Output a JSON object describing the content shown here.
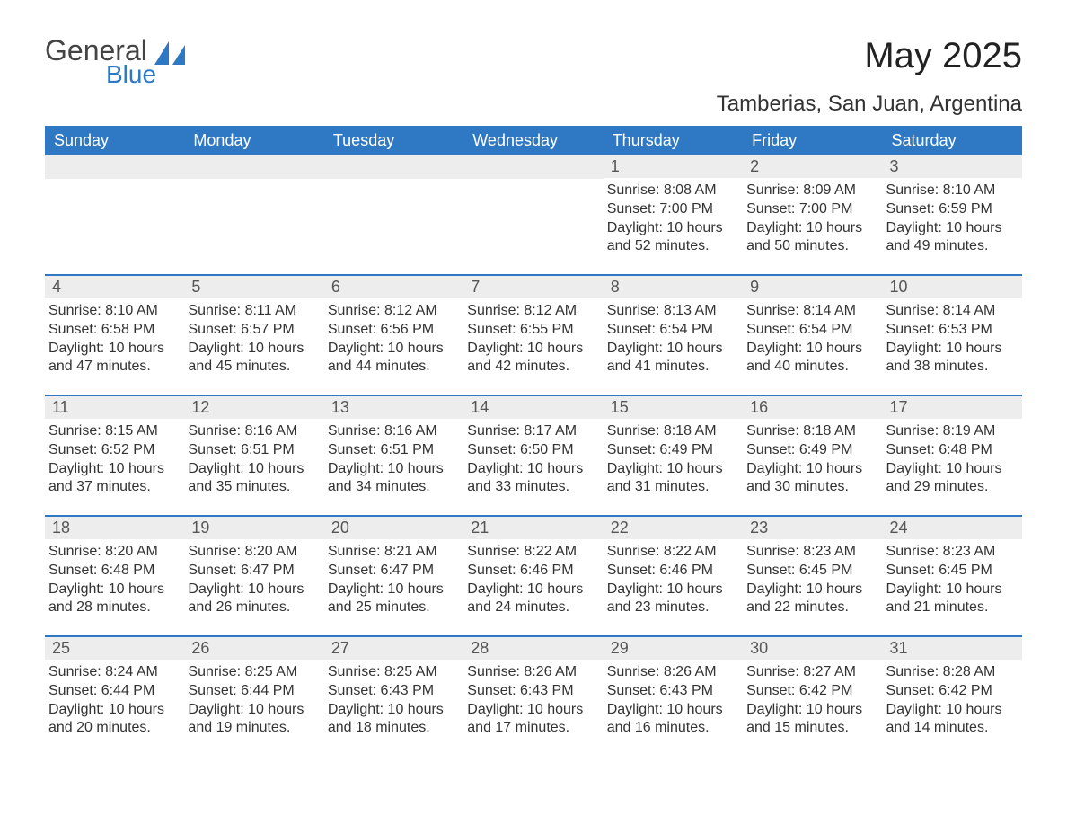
{
  "logo": {
    "word1": "General",
    "word2": "Blue",
    "accent_color": "#2f79c4"
  },
  "title": "May 2025",
  "location": "Tamberias, San Juan, Argentina",
  "colors": {
    "header_bg": "#2f79c4",
    "header_text": "#ffffff",
    "daynum_bg": "#ededed",
    "text": "#333333",
    "background": "#ffffff"
  },
  "typography": {
    "title_fontsize": 40,
    "location_fontsize": 24,
    "dow_fontsize": 18,
    "body_fontsize": 16
  },
  "calendar": {
    "type": "table",
    "days_of_week": [
      "Sunday",
      "Monday",
      "Tuesday",
      "Wednesday",
      "Thursday",
      "Friday",
      "Saturday"
    ],
    "weeks": [
      [
        null,
        null,
        null,
        null,
        {
          "n": "1",
          "sunrise": "8:08 AM",
          "sunset": "7:00 PM",
          "daylight": "10 hours and 52 minutes."
        },
        {
          "n": "2",
          "sunrise": "8:09 AM",
          "sunset": "7:00 PM",
          "daylight": "10 hours and 50 minutes."
        },
        {
          "n": "3",
          "sunrise": "8:10 AM",
          "sunset": "6:59 PM",
          "daylight": "10 hours and 49 minutes."
        }
      ],
      [
        {
          "n": "4",
          "sunrise": "8:10 AM",
          "sunset": "6:58 PM",
          "daylight": "10 hours and 47 minutes."
        },
        {
          "n": "5",
          "sunrise": "8:11 AM",
          "sunset": "6:57 PM",
          "daylight": "10 hours and 45 minutes."
        },
        {
          "n": "6",
          "sunrise": "8:12 AM",
          "sunset": "6:56 PM",
          "daylight": "10 hours and 44 minutes."
        },
        {
          "n": "7",
          "sunrise": "8:12 AM",
          "sunset": "6:55 PM",
          "daylight": "10 hours and 42 minutes."
        },
        {
          "n": "8",
          "sunrise": "8:13 AM",
          "sunset": "6:54 PM",
          "daylight": "10 hours and 41 minutes."
        },
        {
          "n": "9",
          "sunrise": "8:14 AM",
          "sunset": "6:54 PM",
          "daylight": "10 hours and 40 minutes."
        },
        {
          "n": "10",
          "sunrise": "8:14 AM",
          "sunset": "6:53 PM",
          "daylight": "10 hours and 38 minutes."
        }
      ],
      [
        {
          "n": "11",
          "sunrise": "8:15 AM",
          "sunset": "6:52 PM",
          "daylight": "10 hours and 37 minutes."
        },
        {
          "n": "12",
          "sunrise": "8:16 AM",
          "sunset": "6:51 PM",
          "daylight": "10 hours and 35 minutes."
        },
        {
          "n": "13",
          "sunrise": "8:16 AM",
          "sunset": "6:51 PM",
          "daylight": "10 hours and 34 minutes."
        },
        {
          "n": "14",
          "sunrise": "8:17 AM",
          "sunset": "6:50 PM",
          "daylight": "10 hours and 33 minutes."
        },
        {
          "n": "15",
          "sunrise": "8:18 AM",
          "sunset": "6:49 PM",
          "daylight": "10 hours and 31 minutes."
        },
        {
          "n": "16",
          "sunrise": "8:18 AM",
          "sunset": "6:49 PM",
          "daylight": "10 hours and 30 minutes."
        },
        {
          "n": "17",
          "sunrise": "8:19 AM",
          "sunset": "6:48 PM",
          "daylight": "10 hours and 29 minutes."
        }
      ],
      [
        {
          "n": "18",
          "sunrise": "8:20 AM",
          "sunset": "6:48 PM",
          "daylight": "10 hours and 28 minutes."
        },
        {
          "n": "19",
          "sunrise": "8:20 AM",
          "sunset": "6:47 PM",
          "daylight": "10 hours and 26 minutes."
        },
        {
          "n": "20",
          "sunrise": "8:21 AM",
          "sunset": "6:47 PM",
          "daylight": "10 hours and 25 minutes."
        },
        {
          "n": "21",
          "sunrise": "8:22 AM",
          "sunset": "6:46 PM",
          "daylight": "10 hours and 24 minutes."
        },
        {
          "n": "22",
          "sunrise": "8:22 AM",
          "sunset": "6:46 PM",
          "daylight": "10 hours and 23 minutes."
        },
        {
          "n": "23",
          "sunrise": "8:23 AM",
          "sunset": "6:45 PM",
          "daylight": "10 hours and 22 minutes."
        },
        {
          "n": "24",
          "sunrise": "8:23 AM",
          "sunset": "6:45 PM",
          "daylight": "10 hours and 21 minutes."
        }
      ],
      [
        {
          "n": "25",
          "sunrise": "8:24 AM",
          "sunset": "6:44 PM",
          "daylight": "10 hours and 20 minutes."
        },
        {
          "n": "26",
          "sunrise": "8:25 AM",
          "sunset": "6:44 PM",
          "daylight": "10 hours and 19 minutes."
        },
        {
          "n": "27",
          "sunrise": "8:25 AM",
          "sunset": "6:43 PM",
          "daylight": "10 hours and 18 minutes."
        },
        {
          "n": "28",
          "sunrise": "8:26 AM",
          "sunset": "6:43 PM",
          "daylight": "10 hours and 17 minutes."
        },
        {
          "n": "29",
          "sunrise": "8:26 AM",
          "sunset": "6:43 PM",
          "daylight": "10 hours and 16 minutes."
        },
        {
          "n": "30",
          "sunrise": "8:27 AM",
          "sunset": "6:42 PM",
          "daylight": "10 hours and 15 minutes."
        },
        {
          "n": "31",
          "sunrise": "8:28 AM",
          "sunset": "6:42 PM",
          "daylight": "10 hours and 14 minutes."
        }
      ]
    ],
    "labels": {
      "sunrise": "Sunrise: ",
      "sunset": "Sunset: ",
      "daylight": "Daylight: "
    }
  }
}
